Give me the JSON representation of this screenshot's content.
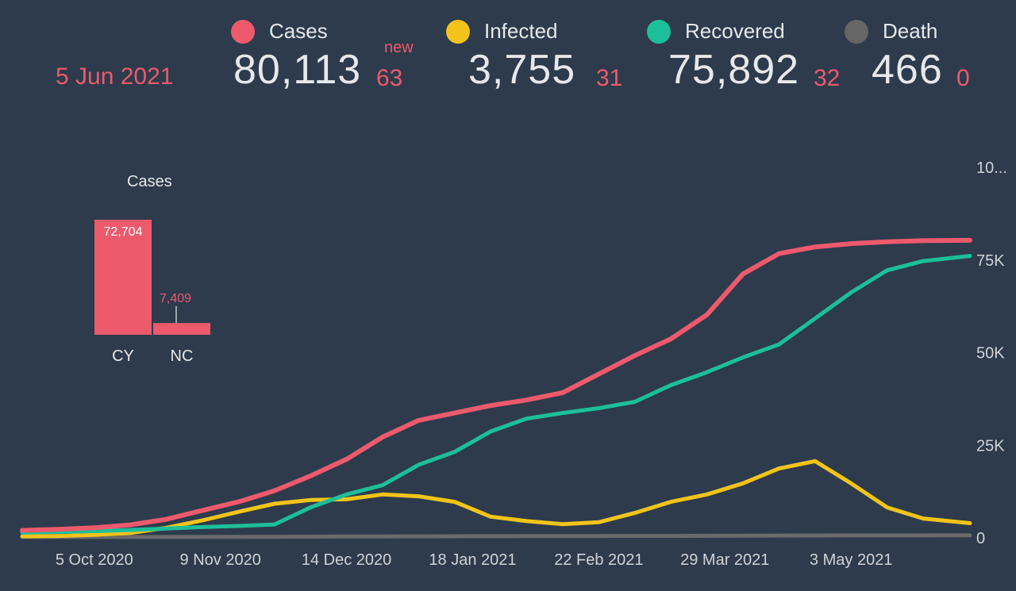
{
  "header": {
    "date": "5 Jun 2021",
    "new_label": "new",
    "stats": [
      {
        "name": "Cases",
        "value": "80,113",
        "delta": "63",
        "color": "#ec5a6c"
      },
      {
        "name": "Infected",
        "value": "3,755",
        "delta": "31",
        "color": "#f2c419"
      },
      {
        "name": "Recovered",
        "value": "75,892",
        "delta": "32",
        "color": "#1cbf9a"
      },
      {
        "name": "Death",
        "value": "466",
        "delta": "0",
        "color": "#6a6a6a"
      }
    ]
  },
  "inset": {
    "title": "Cases",
    "bars": [
      {
        "label": "CY",
        "value": 72704,
        "display": "72,704"
      },
      {
        "label": "NC",
        "value": 7409,
        "display": "7,409"
      }
    ],
    "color": "#ec5a6c"
  },
  "chart_data": {
    "type": "line",
    "x": [
      "2020-09-15",
      "2020-09-25",
      "2020-10-05",
      "2020-10-15",
      "2020-10-25",
      "2020-11-04",
      "2020-11-14",
      "2020-11-24",
      "2020-12-04",
      "2020-12-14",
      "2020-12-24",
      "2021-01-03",
      "2021-01-13",
      "2021-01-23",
      "2021-02-02",
      "2021-02-12",
      "2021-02-22",
      "2021-03-04",
      "2021-03-14",
      "2021-03-24",
      "2021-04-03",
      "2021-04-13",
      "2021-04-23",
      "2021-05-03",
      "2021-05-13",
      "2021-05-23",
      "2021-06-05"
    ],
    "x_ticks": [
      "5 Oct 2020",
      "9 Nov 2020",
      "14 Dec 2020",
      "18 Jan 2021",
      "22 Feb 2021",
      "29 Mar 2021",
      "3 May 2021"
    ],
    "y_ticks": [
      "0",
      "25K",
      "50K",
      "75K",
      "10..."
    ],
    "ylim": [
      0,
      100000
    ],
    "series": [
      {
        "name": "Cases",
        "color": "#ec5a6c",
        "values": [
          1800,
          2100,
          2500,
          3300,
          4800,
          7200,
          9500,
          12500,
          16500,
          21000,
          27000,
          31500,
          33500,
          35500,
          37000,
          39000,
          44000,
          49000,
          53500,
          60000,
          71000,
          76500,
          78300,
          79200,
          79700,
          80000,
          80113
        ]
      },
      {
        "name": "Recovered",
        "color": "#1cbf9a",
        "values": [
          1200,
          1400,
          1600,
          1900,
          2300,
          2700,
          3000,
          3400,
          8000,
          11500,
          14000,
          19500,
          23000,
          28500,
          32000,
          33500,
          34800,
          36500,
          41000,
          44500,
          48500,
          52000,
          59000,
          66000,
          72000,
          74500,
          75892
        ]
      },
      {
        "name": "Infected",
        "color": "#f2c419",
        "values": [
          200,
          300,
          600,
          1100,
          2500,
          4500,
          6800,
          9000,
          10000,
          10200,
          11500,
          11000,
          9500,
          5500,
          4300,
          3500,
          4000,
          6500,
          9500,
          11500,
          14500,
          18500,
          20500,
          14500,
          8000,
          5000,
          3755
        ]
      },
      {
        "name": "Death",
        "color": "#6a6a6a",
        "values": [
          20,
          22,
          23,
          25,
          30,
          45,
          60,
          80,
          110,
          140,
          170,
          200,
          220,
          240,
          250,
          260,
          270,
          290,
          310,
          340,
          370,
          400,
          420,
          440,
          450,
          460,
          466
        ]
      }
    ]
  }
}
